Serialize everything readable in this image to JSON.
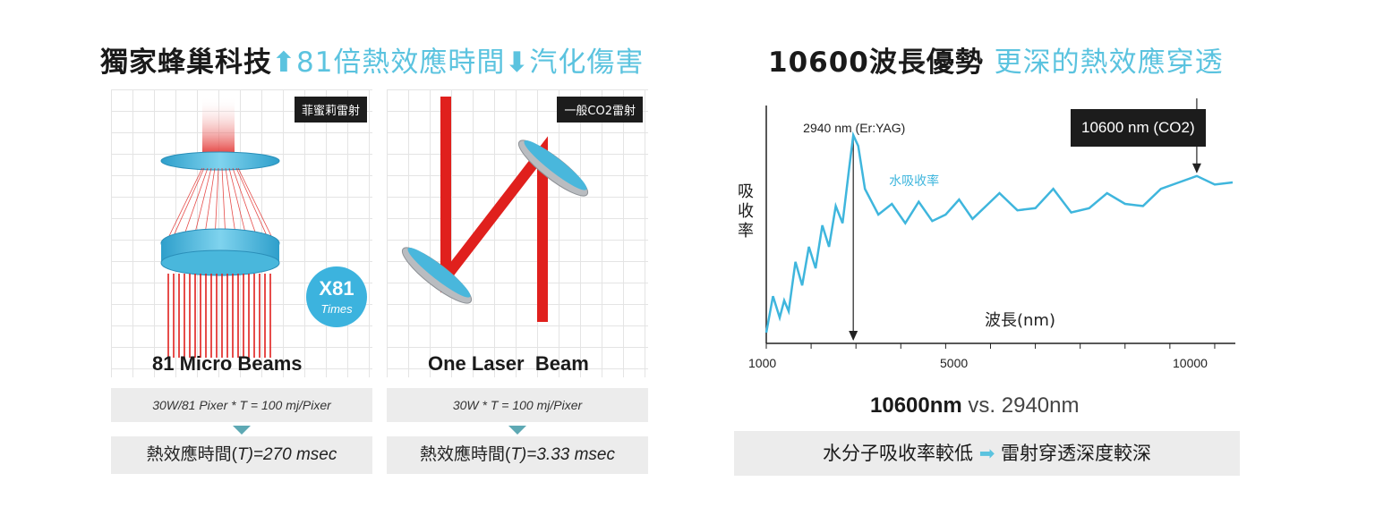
{
  "left_header": {
    "main": "獨家蜂巢科技",
    "arrow_up": "⬆",
    "accent1": "81倍熱效應時間",
    "arrow_down": "⬇",
    "accent2": "汽化傷害"
  },
  "left_panel": {
    "tag": "菲蜜莉雷射",
    "times_badge": {
      "x": "X81",
      "times": "Times"
    },
    "label": "81 Micro Beams",
    "formula": "30W/81 Pixer * T = 100 mj/Pixer",
    "time_prefix": "熱效應時間(",
    "time_var": "T",
    "time_suffix": ")=270 msec"
  },
  "middle_panel": {
    "tag": "一般CO2雷射",
    "label": "One Laser  Beam",
    "formula": "30W * T = 100 mj/Pixer",
    "time_prefix": "熱效應時間(",
    "time_var": "T",
    "time_suffix": ")=3.33 msec"
  },
  "right_header": {
    "main": "10600波長優勢",
    "accent": "更深的熱效應穿透"
  },
  "chart_data": {
    "type": "line",
    "title": "",
    "xlabel": "波長(nm)",
    "ylabel": "吸收率",
    "x_ticks": [
      "1000",
      "5000",
      "10000"
    ],
    "xlim": [
      1000,
      11500
    ],
    "series": [
      {
        "name": "水吸收率",
        "x": [
          1000,
          1150,
          1300,
          1400,
          1500,
          1650,
          1800,
          1950,
          2100,
          2250,
          2400,
          2550,
          2700,
          2850,
          2940,
          3050,
          3200,
          3500,
          3800,
          4100,
          4400,
          4700,
          5000,
          5300,
          5600,
          5900,
          6200,
          6600,
          7000,
          7400,
          7800,
          8200,
          8600,
          9000,
          9400,
          9800,
          10200,
          10600,
          11000,
          11400
        ],
        "values": [
          0.05,
          0.22,
          0.12,
          0.2,
          0.15,
          0.38,
          0.27,
          0.45,
          0.35,
          0.55,
          0.45,
          0.64,
          0.56,
          0.82,
          0.97,
          0.92,
          0.72,
          0.6,
          0.65,
          0.56,
          0.66,
          0.57,
          0.6,
          0.67,
          0.58,
          0.64,
          0.7,
          0.62,
          0.63,
          0.72,
          0.61,
          0.63,
          0.7,
          0.65,
          0.64,
          0.72,
          0.75,
          0.78,
          0.74,
          0.75
        ]
      }
    ],
    "annotations": [
      {
        "text": "2940 nm (Er:YAG)",
        "x": 2940
      },
      {
        "text": "10600 nm (CO2)",
        "x": 10600
      }
    ]
  },
  "comparison": {
    "bold": "10600nm",
    "rest": " vs. 2940nm"
  },
  "bottom_bar": {
    "left": "水分子吸收率較低",
    "arrow": "➡",
    "right": "雷射穿透深度較深"
  },
  "colors": {
    "accent": "#5bc3df",
    "laser_red": "#e0201d",
    "lens_blue": "#4ab8de",
    "dark_tag": "#1c1c1c"
  }
}
